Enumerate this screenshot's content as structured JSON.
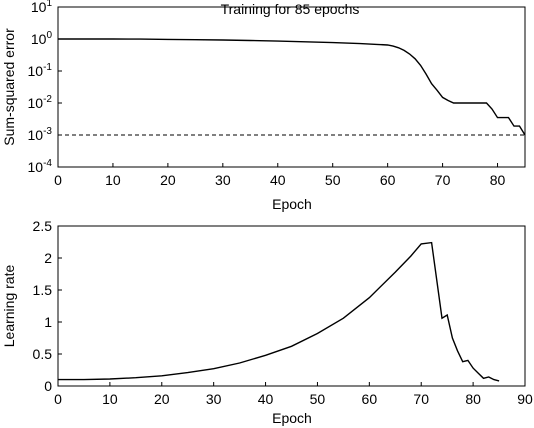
{
  "chart_data": [
    {
      "type": "line",
      "title": "Training for 85 epochs",
      "xlabel": "",
      "ylabel": "Sum-squared error",
      "yscale": "log",
      "xlim": [
        0,
        85
      ],
      "ylim": [
        0.0001,
        10
      ],
      "xticks": [
        "0",
        "10",
        "20",
        "30",
        "40",
        "50",
        "60",
        "70",
        "80"
      ],
      "ytick_base": "10",
      "ytick_exponents": [
        "1",
        "0",
        "-1",
        "-2",
        "-3",
        "-4"
      ],
      "grid": false,
      "series": [
        {
          "x": [
            0,
            5,
            10,
            15,
            20,
            25,
            30,
            35,
            40,
            45,
            50,
            55,
            58,
            60,
            61,
            62,
            63,
            64,
            65,
            66,
            67,
            68,
            69,
            70,
            71,
            72,
            73,
            74,
            75,
            76,
            77,
            78,
            79,
            80,
            81,
            82,
            83,
            84,
            85
          ],
          "y": [
            1.0,
            1.0,
            1.0,
            0.99,
            0.97,
            0.95,
            0.93,
            0.9,
            0.86,
            0.82,
            0.77,
            0.72,
            0.68,
            0.65,
            0.6,
            0.53,
            0.44,
            0.34,
            0.24,
            0.15,
            0.08,
            0.04,
            0.025,
            0.015,
            0.012,
            0.01,
            0.01,
            0.01,
            0.01,
            0.01,
            0.01,
            0.01,
            0.0065,
            0.0035,
            0.0035,
            0.0035,
            0.0019,
            0.0019,
            0.001
          ]
        },
        {
          "x": [
            0,
            85
          ],
          "y": [
            0.001,
            0.001
          ],
          "style": "dashed"
        }
      ]
    },
    {
      "type": "line",
      "title": "",
      "xlabel": "Epoch",
      "ylabel": "Learning rate",
      "xlim": [
        0,
        90
      ],
      "ylim": [
        0,
        2.5
      ],
      "xticks": [
        "0",
        "10",
        "20",
        "30",
        "40",
        "50",
        "60",
        "70",
        "80",
        "90"
      ],
      "yticks": [
        "0",
        "0.5",
        "1",
        "1.5",
        "2",
        "2.5"
      ],
      "grid": false,
      "series": [
        {
          "x": [
            0,
            5,
            10,
            15,
            20,
            25,
            30,
            35,
            40,
            45,
            50,
            55,
            60,
            65,
            68,
            70,
            72,
            74,
            75,
            76,
            77,
            78,
            79,
            80,
            81,
            82,
            83,
            84,
            85
          ],
          "y": [
            0.1,
            0.1,
            0.11,
            0.13,
            0.16,
            0.21,
            0.27,
            0.36,
            0.48,
            0.62,
            0.82,
            1.06,
            1.38,
            1.78,
            2.03,
            2.22,
            2.24,
            1.06,
            1.11,
            0.75,
            0.55,
            0.38,
            0.4,
            0.28,
            0.2,
            0.12,
            0.14,
            0.1,
            0.08
          ]
        }
      ]
    }
  ],
  "top_xlabel": "Epoch"
}
